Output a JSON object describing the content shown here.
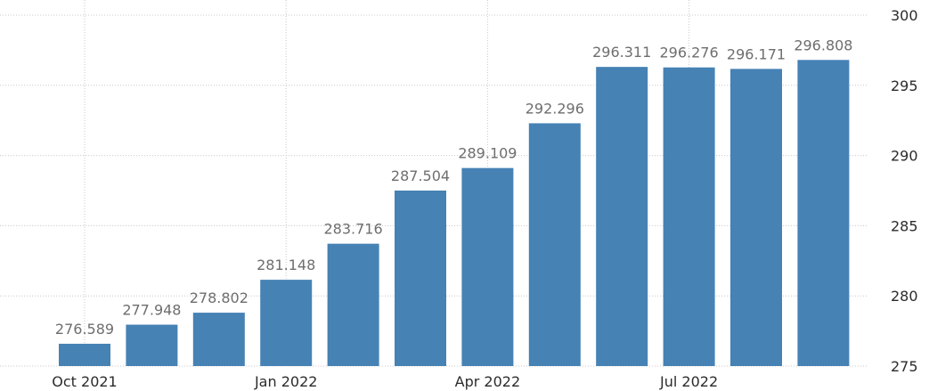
{
  "chart_data": {
    "type": "bar",
    "categories": [
      "Oct 2021",
      "Nov 2021",
      "Dec 2021",
      "Jan 2022",
      "Feb 2022",
      "Mar 2022",
      "Apr 2022",
      "May 2022",
      "Jun 2022",
      "Jul 2022",
      "Aug 2022",
      "Sep 2022"
    ],
    "values": [
      276.589,
      277.948,
      278.802,
      281.148,
      283.716,
      287.504,
      289.109,
      292.296,
      296.311,
      296.276,
      296.171,
      296.808
    ],
    "data_labels": [
      "276.589",
      "277.948",
      "278.802",
      "281.148",
      "283.716",
      "287.504",
      "289.109",
      "292.296",
      "296.311",
      "296.276",
      "296.171",
      "296.808"
    ],
    "x_tick_labels": [
      {
        "category": "Oct 2021",
        "text": "Oct 2021"
      },
      {
        "category": "Jan 2022",
        "text": "Jan 2022"
      },
      {
        "category": "Apr 2022",
        "text": "Apr 2022"
      },
      {
        "category": "Jul 2022",
        "text": "Jul 2022"
      }
    ],
    "y_ticks": [
      {
        "value": 275,
        "text": "275"
      },
      {
        "value": 280,
        "text": "280"
      },
      {
        "value": 285,
        "text": "285"
      },
      {
        "value": 290,
        "text": "290"
      },
      {
        "value": 295,
        "text": "295"
      },
      {
        "value": 300,
        "text": "300"
      }
    ],
    "ylim": [
      275,
      300
    ],
    "y_axis_side": "right",
    "grid": true,
    "title": "",
    "xlabel": "",
    "ylabel": "",
    "colors": {
      "bar": "#4682b4",
      "grid": "#c8c8c8",
      "data_label": "#6e6e6e",
      "tick_label": "#2b2b2b"
    }
  }
}
